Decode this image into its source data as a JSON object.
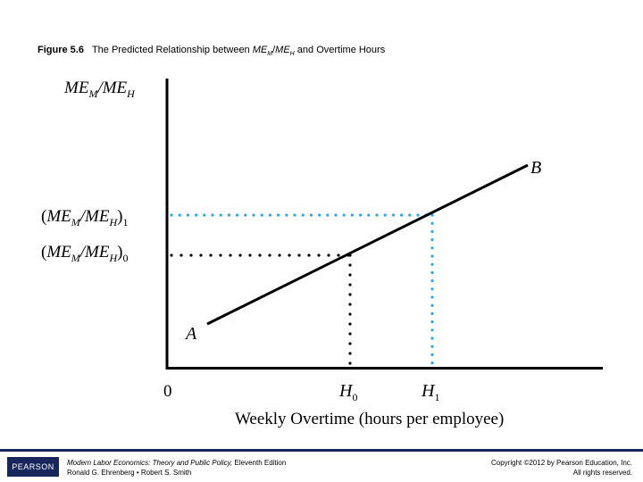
{
  "title": {
    "label": "Figure 5.6",
    "text": "The Predicted Relationship between",
    "var_main": "ME",
    "var_sub1": "M",
    "slash": "/",
    "var_sub2": "H",
    "tail": "and Overtime Hours"
  },
  "diagram": {
    "y_axis_label": "ME_M/ME_H",
    "x_axis_label": "Weekly Overtime (hours per employee)",
    "origin_label": "0",
    "point_a": "A",
    "point_b": "B",
    "x_ticks": [
      {
        "main": "H",
        "sub": "0"
      },
      {
        "main": "H",
        "sub": "1"
      }
    ],
    "y_ticks": [
      {
        "text": "(ME_M/ME_H)_1"
      },
      {
        "text": "(ME_M/ME_H)_0"
      }
    ],
    "colors": {
      "curve": "#000000",
      "guide_h0": "#000000",
      "guide_h1": "#29a9e0"
    }
  },
  "footer": {
    "logo": "PEARSON",
    "book_title": "Modern Labor Economics: Theory and Public Policy,",
    "edition": "Eleventh Edition",
    "authors": "Ronald G. Ehrenberg • Robert S. Smith",
    "copyright": "Copyright ©2012 by Pearson Education, Inc.",
    "rights": "All rights reserved."
  }
}
